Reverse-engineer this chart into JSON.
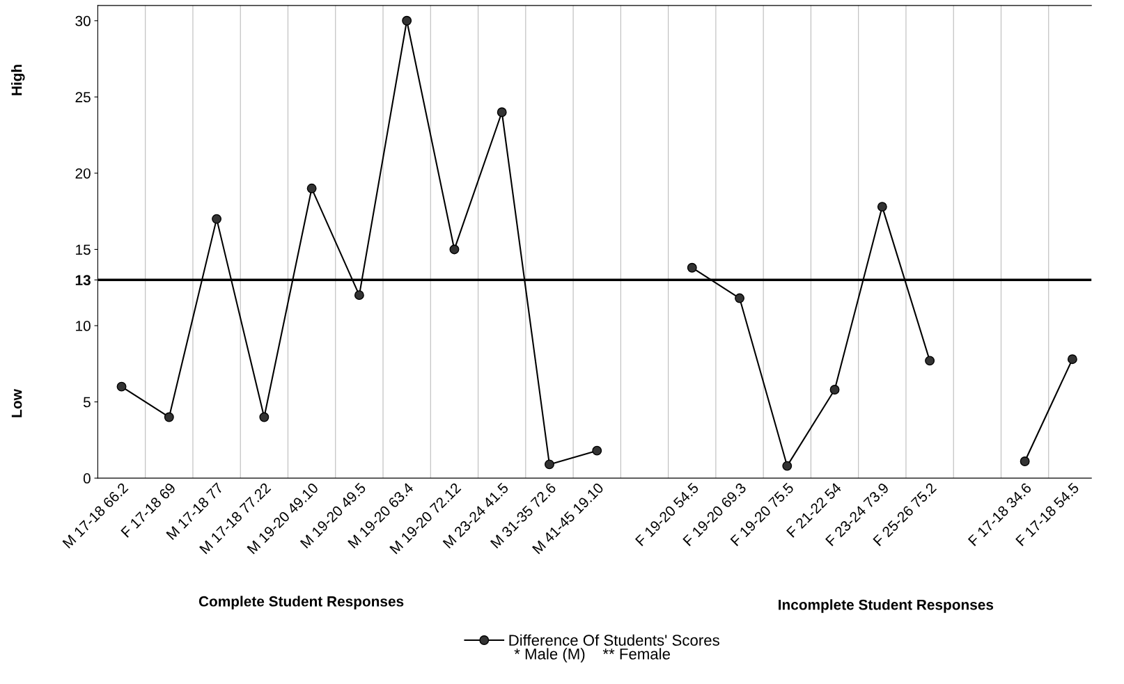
{
  "chart_data": {
    "type": "line",
    "categories": [
      "M 17-18 66.2",
      "F 17-18 69",
      "M 17-18 77",
      "M 17-18 77.22",
      "M 19-20 49.10",
      "M 19-20 49.5",
      "M 19-20 63.4",
      "M 19-20 72.12",
      "M 23-24 41.5",
      "M 31-35 72.6",
      "M 41-45 19.10",
      null,
      "F 19-20 54.5",
      "F 19-20 69.3",
      "F 19-20 75.5",
      "F 21-22 54",
      "F 23-24 73.9",
      "F 25-26 75.2",
      null,
      "F 17-18 34.6",
      "F 17-18 54.5"
    ],
    "series": [
      {
        "name": "Difference Of Students' Scores",
        "color": "#000000",
        "values": [
          6,
          4,
          17,
          4,
          19,
          12,
          30,
          15,
          24,
          0.9,
          1.8,
          null,
          13.8,
          11.8,
          0.8,
          5.8,
          17.8,
          7.7,
          null,
          1.1,
          7.8
        ]
      }
    ],
    "ylim": [
      0,
      31
    ],
    "yticks": [
      0,
      5,
      10,
      {
        "value": 13,
        "label": "13"
      },
      15,
      20,
      25,
      30
    ],
    "ref_lines": [
      {
        "axis": "y",
        "value": 13,
        "color": "#000000"
      }
    ],
    "annotations": [
      "High",
      "Low",
      "Complete Student Responses",
      "Incomplete Student Responses",
      "* Male (M)    ** Female"
    ],
    "grid": "x",
    "legend": "bottom",
    "marker": "circle",
    "line_style": "solid"
  }
}
